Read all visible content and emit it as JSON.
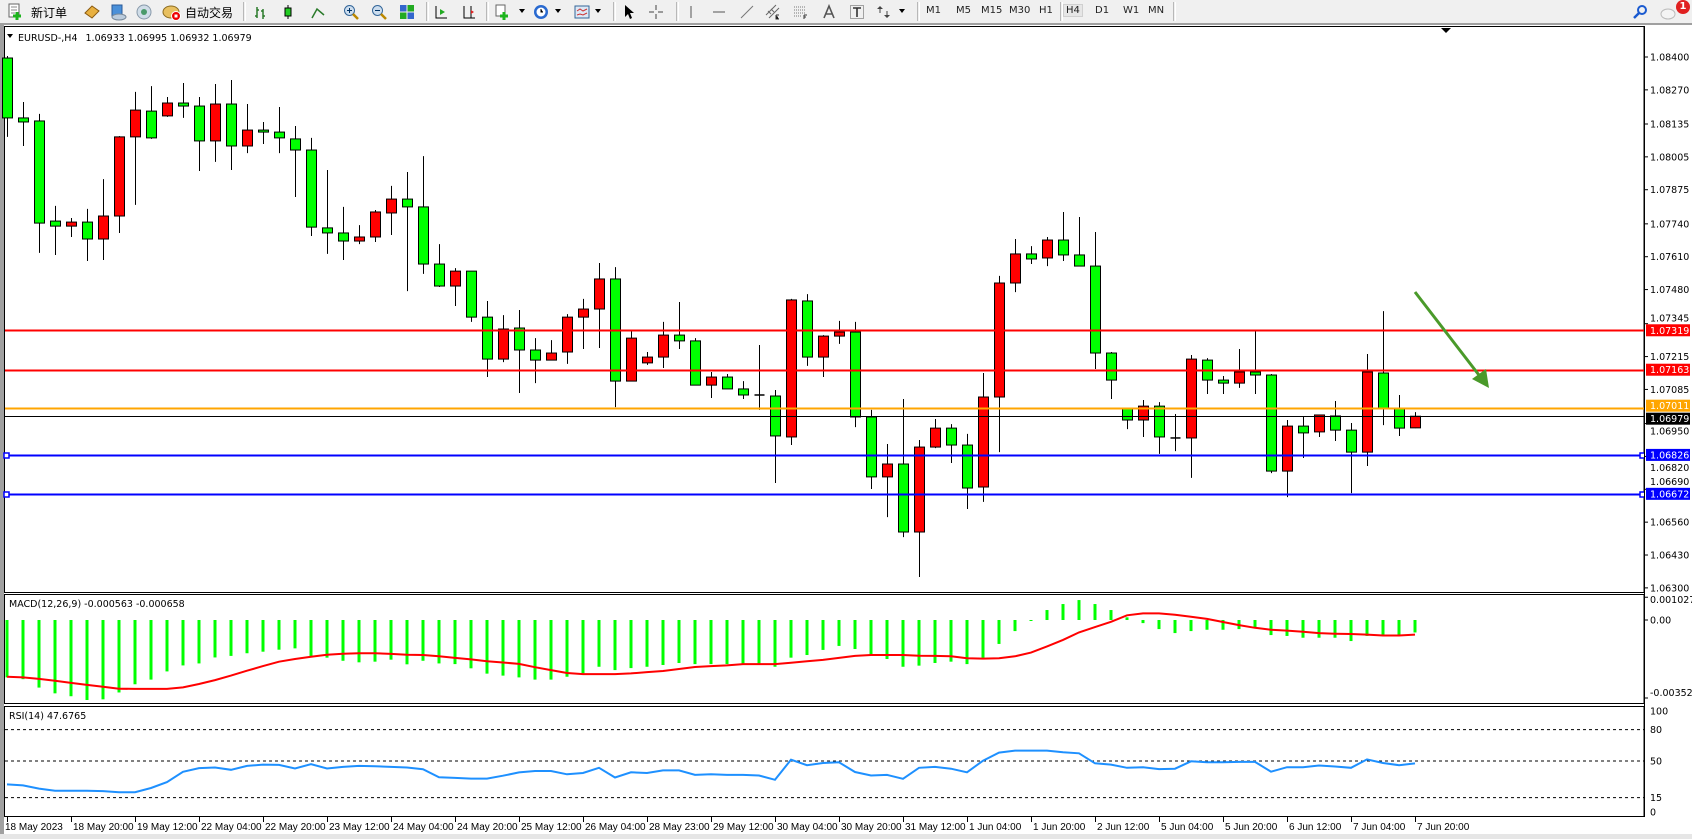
{
  "toolbar": {
    "new_order_label": "新订单",
    "auto_trading_label": "自动交易",
    "periods": [
      "M1",
      "M5",
      "M15",
      "M30",
      "H1",
      "H4",
      "D1",
      "W1",
      "MN"
    ],
    "active_period": "H4",
    "notification_count": "1",
    "icons": [
      "new-order-icon",
      "history-center-icon",
      "market-watch-icon",
      "signals-icon",
      "auto-trading-icon",
      "bar-chart-icon",
      "candlestick-icon",
      "line-chart-icon",
      "zoom-in-icon",
      "zoom-out-icon",
      "tile-windows-icon",
      "auto-scroll-icon",
      "chart-shift-icon",
      "new-chart-icon",
      "periods-icon",
      "template-icon",
      "cursor-icon",
      "crosshair-icon",
      "vertical-line-icon",
      "horizontal-line-icon",
      "trendline-icon",
      "equidistant-channel-icon",
      "fibonacci-icon",
      "text-icon",
      "text-label-icon",
      "arrows-icon",
      "search-icon",
      "notifications-icon"
    ]
  },
  "chart": {
    "symbol_title": "EURUSD-,H4",
    "ohlc_text": "1.06933 1.06995 1.06932 1.06979",
    "bull_color": "#ff0000",
    "bear_color": "#00ff00",
    "arrow_color": "#4a9a2a",
    "hlines": [
      {
        "price": 1.07319,
        "label": "1.07319",
        "color": "#ff0000"
      },
      {
        "price": 1.07163,
        "label": "1.07163",
        "color": "#ff0000"
      },
      {
        "price": 1.07011,
        "label": "1.07011",
        "color": "#ffa500"
      },
      {
        "price": 1.06979,
        "label": "1.06979",
        "color": "#000000"
      },
      {
        "price": 1.06826,
        "label": "1.06826",
        "color": "#0000ff"
      },
      {
        "price": 1.06672,
        "label": "1.06672",
        "color": "#0000ff"
      }
    ]
  },
  "macd": {
    "label": "MACD(12,26,9) -0.000563 -0.000658",
    "axis_labels": [
      {
        "v": 0.001027,
        "t": "0.001027"
      },
      {
        "v": 0,
        "t": "0.00"
      },
      {
        "v": -0.00352,
        "t": "-0.00352"
      }
    ],
    "hist_color": "#00ff00",
    "signal_color": "#ff0000"
  },
  "rsi": {
    "label": "RSI(14) 47.6765",
    "axis_labels": [
      {
        "v": 100,
        "t": "100"
      },
      {
        "v": 80,
        "t": "80"
      },
      {
        "v": 50,
        "t": "50"
      },
      {
        "v": 15,
        "t": "15"
      },
      {
        "v": 0,
        "t": "0"
      }
    ],
    "levels": [
      80,
      50,
      15
    ],
    "line_color": "#1e90ff"
  },
  "chart_data": {
    "type": "candlestick",
    "price_ticks": [
      "1.08400",
      "1.08270",
      "1.08135",
      "1.08005",
      "1.07875",
      "1.07740",
      "1.07610",
      "1.07480",
      "1.07345",
      "1.07215",
      "1.07085",
      "1.06950",
      "1.06820",
      "1.06690",
      "1.06560",
      "1.06430",
      "1.06300"
    ],
    "time_labels": [
      "18 May 2023",
      "18 May 20:00",
      "19 May 12:00",
      "22 May 04:00",
      "22 May 20:00",
      "23 May 12:00",
      "24 May 04:00",
      "24 May 20:00",
      "25 May 12:00",
      "26 May 04:00",
      "28 May 23:00",
      "29 May 12:00",
      "30 May 04:00",
      "30 May 20:00",
      "31 May 12:00",
      "1 Jun 04:00",
      "1 Jun 20:00",
      "2 Jun 12:00",
      "5 Jun 04:00",
      "5 Jun 20:00",
      "6 Jun 12:00",
      "7 Jun 04:00",
      "7 Jun 20:00"
    ],
    "time_label_every_bars": 4,
    "ohlc": [
      [
        1.08396,
        1.08404,
        1.08084,
        1.08159
      ],
      [
        1.08159,
        1.08222,
        1.08048,
        1.08143
      ],
      [
        1.08147,
        1.08175,
        1.07625,
        1.07743
      ],
      [
        1.07751,
        1.07811,
        1.07617,
        1.07731
      ],
      [
        1.07731,
        1.07763,
        1.07688,
        1.07747
      ],
      [
        1.07747,
        1.07799,
        1.07593,
        1.0768
      ],
      [
        1.0768,
        1.07917,
        1.07597,
        1.07771
      ],
      [
        1.07771,
        1.08087,
        1.07704,
        1.08084
      ],
      [
        1.08084,
        1.08262,
        1.07815,
        1.0819
      ],
      [
        1.08186,
        1.08285,
        1.08076,
        1.0808
      ],
      [
        1.08167,
        1.08242,
        1.08163,
        1.08218
      ],
      [
        1.08218,
        1.08297,
        1.08159,
        1.08206
      ],
      [
        1.08206,
        1.08242,
        1.07949,
        1.08068
      ],
      [
        1.08068,
        1.08293,
        1.07985,
        1.08214
      ],
      [
        1.08214,
        1.08309,
        1.07953,
        1.08048
      ],
      [
        1.08048,
        1.08214,
        1.0802,
        1.08111
      ],
      [
        1.08111,
        1.08143,
        1.08056,
        1.08103
      ],
      [
        1.08103,
        1.08202,
        1.0802,
        1.0808
      ],
      [
        1.08076,
        1.08127,
        1.07846,
        1.08032
      ],
      [
        1.08032,
        1.0808,
        1.07692,
        1.07727
      ],
      [
        1.07724,
        1.07953,
        1.07621,
        1.07704
      ],
      [
        1.07704,
        1.07807,
        1.07597,
        1.07672
      ],
      [
        1.07672,
        1.07735,
        1.0766,
        1.07688
      ],
      [
        1.07688,
        1.07795,
        1.07668,
        1.07787
      ],
      [
        1.07783,
        1.0789,
        1.07696,
        1.07838
      ],
      [
        1.07838,
        1.07945,
        1.07474,
        1.07807
      ],
      [
        1.07807,
        1.08008,
        1.07542,
        1.07581
      ],
      [
        1.07581,
        1.0766,
        1.0749,
        1.07494
      ],
      [
        1.07494,
        1.07565,
        1.07415,
        1.07553
      ],
      [
        1.07553,
        1.07553,
        1.07352,
        1.07371
      ],
      [
        1.07371,
        1.07435,
        1.07134,
        1.07205
      ],
      [
        1.07205,
        1.07379,
        1.07193,
        1.07324
      ],
      [
        1.07328,
        1.07399,
        1.07071,
        1.07241
      ],
      [
        1.07241,
        1.07288,
        1.0711,
        1.07201
      ],
      [
        1.07201,
        1.0728,
        1.07201,
        1.07229
      ],
      [
        1.07233,
        1.07383,
        1.07186,
        1.07371
      ],
      [
        1.07371,
        1.07443,
        1.07245,
        1.07403
      ],
      [
        1.07403,
        1.07585,
        1.07249,
        1.07522
      ],
      [
        1.07522,
        1.07569,
        1.07015,
        1.07118
      ],
      [
        1.07118,
        1.07316,
        1.07118,
        1.07288
      ],
      [
        1.0719,
        1.07233,
        1.07182,
        1.07213
      ],
      [
        1.07213,
        1.07352,
        1.0717,
        1.073
      ],
      [
        1.073,
        1.07431,
        1.07245,
        1.07277
      ],
      [
        1.07277,
        1.07288,
        1.07102,
        1.07102
      ],
      [
        1.07102,
        1.07154,
        1.07051,
        1.07134
      ],
      [
        1.07134,
        1.07146,
        1.07087,
        1.07087
      ],
      [
        1.07087,
        1.07118,
        1.07047,
        1.07063
      ],
      [
        1.07063,
        1.07261,
        1.07004,
        1.07061
      ],
      [
        1.07059,
        1.07083,
        1.06715,
        1.06901
      ],
      [
        1.06897,
        1.07443,
        1.06865,
        1.07439
      ],
      [
        1.07435,
        1.07462,
        1.07178,
        1.07213
      ],
      [
        1.07213,
        1.073,
        1.07134,
        1.07296
      ],
      [
        1.07296,
        1.07356,
        1.07265,
        1.07312
      ],
      [
        1.07312,
        1.07352,
        1.06936,
        1.06976
      ],
      [
        1.06976,
        1.07004,
        1.06691,
        1.06739
      ],
      [
        1.06739,
        1.06869,
        1.0658,
        1.0679
      ],
      [
        1.0679,
        1.07047,
        1.06501,
        1.06521
      ],
      [
        1.06521,
        1.06885,
        1.06343,
        1.06857
      ],
      [
        1.06857,
        1.06968,
        1.06853,
        1.06932
      ],
      [
        1.06932,
        1.06948,
        1.06794,
        1.06865
      ],
      [
        1.06865,
        1.06909,
        1.06612,
        1.06695
      ],
      [
        1.06699,
        1.0715,
        1.0664,
        1.07055
      ],
      [
        1.07055,
        1.07534,
        1.06837,
        1.07506
      ],
      [
        1.07506,
        1.0768,
        1.0747,
        1.07621
      ],
      [
        1.07621,
        1.07652,
        1.07581,
        1.07601
      ],
      [
        1.07605,
        1.07688,
        1.07573,
        1.07676
      ],
      [
        1.07676,
        1.07787,
        1.07593,
        1.07617
      ],
      [
        1.07617,
        1.07767,
        1.07573,
        1.07573
      ],
      [
        1.07573,
        1.07708,
        1.07166,
        1.07229
      ],
      [
        1.07229,
        1.07233,
        1.07047,
        1.07122
      ],
      [
        1.07008,
        1.07008,
        1.06928,
        1.06964
      ],
      [
        1.06964,
        1.07043,
        1.06897,
        1.07019
      ],
      [
        1.07019,
        1.07035,
        1.0683,
        1.06897
      ],
      [
        1.06893,
        1.06988,
        1.06841,
        1.06891
      ],
      [
        1.06893,
        1.07221,
        1.06735,
        1.07205
      ],
      [
        1.07201,
        1.07209,
        1.07067,
        1.07122
      ],
      [
        1.07122,
        1.07138,
        1.07067,
        1.0711
      ],
      [
        1.0711,
        1.07245,
        1.07091,
        1.07154
      ],
      [
        1.07154,
        1.07316,
        1.07067,
        1.07142
      ],
      [
        1.07142,
        1.07146,
        1.06754,
        1.06762
      ],
      [
        1.06762,
        1.06964,
        1.06659,
        1.0694
      ],
      [
        1.0694,
        1.06976,
        1.06814,
        1.06913
      ],
      [
        1.06917,
        1.06984,
        1.06897,
        1.06984
      ],
      [
        1.0698,
        1.07039,
        1.06881,
        1.06924
      ],
      [
        1.06924,
        1.06952,
        1.06675,
        1.06837
      ],
      [
        1.06837,
        1.07225,
        1.06782,
        1.07154
      ],
      [
        1.0715,
        1.07395,
        1.06944,
        1.07008
      ],
      [
        1.07008,
        1.07063,
        1.06901,
        1.06932
      ],
      [
        1.06933,
        1.06995,
        1.06932,
        1.06979
      ]
    ],
    "macd_hist": [
      -0.00259,
      -0.00267,
      -0.00305,
      -0.00331,
      -0.00344,
      -0.00361,
      -0.00358,
      -0.00327,
      -0.0029,
      -0.00269,
      -0.00232,
      -0.00205,
      -0.00196,
      -0.00169,
      -0.00162,
      -0.0015,
      -0.00143,
      -0.00134,
      -0.00128,
      -0.00169,
      -0.0017,
      -0.00184,
      -0.00191,
      -0.00188,
      -0.00179,
      -0.002,
      -0.00184,
      -0.00196,
      -0.00199,
      -0.00218,
      -0.00242,
      -0.00251,
      -0.00259,
      -0.00269,
      -0.00269,
      -0.00256,
      -0.00241,
      -0.00211,
      -0.00226,
      -0.00217,
      -0.00211,
      -0.00203,
      -0.00194,
      -0.00199,
      -0.00199,
      -0.00199,
      -0.00199,
      -0.00199,
      -0.00211,
      -0.0017,
      -0.00158,
      -0.00135,
      -0.00117,
      -0.00131,
      -0.00156,
      -0.00176,
      -0.00211,
      -0.00206,
      -0.00194,
      -0.00188,
      -0.00199,
      -0.00171,
      -0.00108,
      -0.0005,
      -3e-05,
      0.00045,
      0.00072,
      0.0009,
      0.00072,
      0.00045,
      0.00012,
      -0.00014,
      -0.00041,
      -0.00059,
      -0.0005,
      -0.00044,
      -0.00044,
      -0.00041,
      -0.00033,
      -0.00068,
      -0.00072,
      -0.0008,
      -0.0008,
      -0.0008,
      -0.00095,
      -0.00072,
      -0.00068,
      -0.00068,
      -0.000563
    ],
    "macd_signal": [
      -0.00256,
      -0.00259,
      -0.00266,
      -0.00274,
      -0.00284,
      -0.00293,
      -0.00301,
      -0.0031,
      -0.00311,
      -0.00311,
      -0.00311,
      -0.00304,
      -0.00289,
      -0.00271,
      -0.00251,
      -0.00229,
      -0.00208,
      -0.00188,
      -0.00176,
      -0.00166,
      -0.00157,
      -0.00152,
      -0.0015,
      -0.0015,
      -0.00153,
      -0.00157,
      -0.00158,
      -0.00164,
      -0.00171,
      -0.00178,
      -0.00186,
      -0.00192,
      -0.00198,
      -0.00213,
      -0.00226,
      -0.00239,
      -0.00244,
      -0.00244,
      -0.00244,
      -0.00241,
      -0.00235,
      -0.0023,
      -0.00221,
      -0.00212,
      -0.00208,
      -0.00205,
      -0.00199,
      -0.00199,
      -0.00199,
      -0.00193,
      -0.00186,
      -0.0018,
      -0.00171,
      -0.00162,
      -0.00158,
      -0.00158,
      -0.00158,
      -0.00161,
      -0.00162,
      -0.00164,
      -0.00173,
      -0.00174,
      -0.00173,
      -0.00164,
      -0.00147,
      -0.00119,
      -0.0009,
      -0.00056,
      -0.00032,
      -8e-05,
      0.00021,
      0.0003,
      0.0003,
      0.00024,
      0.00015,
      5e-05,
      -9e-05,
      -0.00023,
      -0.00035,
      -0.00044,
      -0.00048,
      -0.00053,
      -0.00059,
      -0.00062,
      -0.00063,
      -0.00066,
      -0.0007,
      -0.0007,
      -0.000658
    ],
    "rsi": [
      27.6,
      26.7,
      23.6,
      21.5,
      21.5,
      21.5,
      21.2,
      20.2,
      20.2,
      24.2,
      29.8,
      39.7,
      43.2,
      43.8,
      41.6,
      45.3,
      46.6,
      46.3,
      42.8,
      46.9,
      42.8,
      44.4,
      45.3,
      45.0,
      44.4,
      43.8,
      42.2,
      34.4,
      33.8,
      33.2,
      33.2,
      35.9,
      39.1,
      40.4,
      40.4,
      37.3,
      38.5,
      43.5,
      34.2,
      39.2,
      38.5,
      41.0,
      41.0,
      36.7,
      37.3,
      36.7,
      36.7,
      36.1,
      32.0,
      51.2,
      46.0,
      48.1,
      48.8,
      39.5,
      36.1,
      36.7,
      33.0,
      43.5,
      44.4,
      42.6,
      39.2,
      50.3,
      58.0,
      59.9,
      59.9,
      59.9,
      58.4,
      57.4,
      47.8,
      46.6,
      43.5,
      44.1,
      42.3,
      42.6,
      49.7,
      48.8,
      48.8,
      49.1,
      49.1,
      39.8,
      44.1,
      44.1,
      45.7,
      44.7,
      43.5,
      51.5,
      48.1,
      46.0,
      47.6765
    ]
  }
}
